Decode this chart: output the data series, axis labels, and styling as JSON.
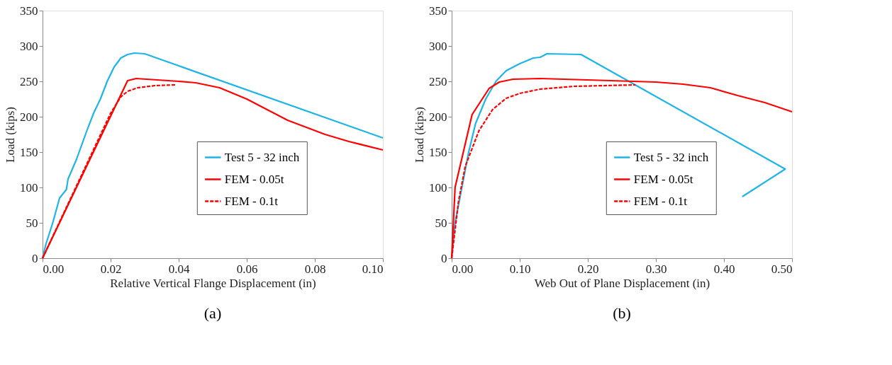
{
  "chart_data": [
    {
      "type": "line",
      "title": "(a)",
      "xlabel": "Relative Vertical Flange Displacement (in)",
      "ylabel": "Load (kips)",
      "xlim": [
        0,
        0.1
      ],
      "ylim": [
        0,
        350
      ],
      "xticks": [
        {
          "value": 0,
          "label": "0.00"
        },
        {
          "value": 0.02,
          "label": "0.02"
        },
        {
          "value": 0.04,
          "label": "0.04"
        },
        {
          "value": 0.06,
          "label": "0.06"
        },
        {
          "value": 0.08,
          "label": "0.08"
        },
        {
          "value": 0.1,
          "label": "0.10"
        }
      ],
      "yticks": [
        0,
        50,
        100,
        150,
        200,
        250,
        300,
        350
      ],
      "grid": false,
      "legend": "bottom right",
      "marker": "none",
      "series": [
        {
          "name": "Test 5 - 32 inch",
          "color": "#1fb4e8",
          "line_style": "solid",
          "x": [
            0,
            0.001,
            0.003,
            0.005,
            0.007,
            0.0075,
            0.01,
            0.013,
            0.015,
            0.017,
            0.019,
            0.021,
            0.023,
            0.025,
            0.027,
            0.03,
            0.1
          ],
          "values": [
            0,
            20,
            50,
            85,
            97,
            112,
            140,
            180,
            205,
            225,
            250,
            270,
            283,
            288,
            290,
            289,
            170
          ]
        },
        {
          "name": "FEM - 0.05t",
          "color": "#ff0000",
          "line_style": "solid",
          "x": [
            0,
            0.025,
            0.0275,
            0.04,
            0.045,
            0.052,
            0.06,
            0.072,
            0.083,
            0.09,
            0.1
          ],
          "values": [
            0,
            251,
            254,
            250,
            248,
            241,
            225,
            195,
            175,
            165,
            153
          ]
        },
        {
          "name": "FEM - 0.1t",
          "color": "#ff0000",
          "line_style": "dashed",
          "x": [
            0,
            0.02,
            0.023,
            0.025,
            0.028,
            0.033,
            0.039
          ],
          "values": [
            0,
            205,
            228,
            236,
            241,
            244,
            245
          ]
        }
      ]
    },
    {
      "type": "line",
      "title": "(b)",
      "xlabel": "Web Out of Plane Displacement (in)",
      "ylabel": "Load (kips)",
      "xlim": [
        0,
        0.5
      ],
      "ylim": [
        0,
        350
      ],
      "xticks": [
        {
          "value": 0,
          "label": "0.00"
        },
        {
          "value": 0.1,
          "label": "0.10"
        },
        {
          "value": 0.2,
          "label": "0.20"
        },
        {
          "value": 0.3,
          "label": "0.30"
        },
        {
          "value": 0.4,
          "label": "0.40"
        },
        {
          "value": 0.5,
          "label": "0.50"
        }
      ],
      "yticks": [
        0,
        50,
        100,
        150,
        200,
        250,
        300,
        350
      ],
      "grid": false,
      "legend": "bottom right",
      "marker": "none",
      "series": [
        {
          "name": "Test 5 - 32 inch",
          "color": "#1fb4e8",
          "line_style": "solid",
          "x": [
            0,
            0.005,
            0.015,
            0.025,
            0.035,
            0.05,
            0.065,
            0.08,
            0.1,
            0.12,
            0.13,
            0.14,
            0.19,
            0.49,
            0.427
          ],
          "values": [
            0,
            50,
            100,
            150,
            190,
            225,
            250,
            265,
            275,
            283,
            284,
            289,
            288,
            126,
            87
          ]
        },
        {
          "name": "FEM - 0.05t",
          "color": "#ff0000",
          "line_style": "solid",
          "x": [
            0,
            0.005,
            0.03,
            0.055,
            0.07,
            0.09,
            0.13,
            0.2,
            0.3,
            0.34,
            0.38,
            0.42,
            0.46,
            0.5
          ],
          "values": [
            0,
            100,
            203,
            240,
            249,
            253,
            254,
            252,
            249,
            246,
            241,
            230,
            220,
            207
          ]
        },
        {
          "name": "FEM - 0.1t",
          "color": "#ff0000",
          "line_style": "dashed",
          "x": [
            0,
            0.01,
            0.02,
            0.04,
            0.06,
            0.08,
            0.1,
            0.13,
            0.18,
            0.27
          ],
          "values": [
            0,
            80,
            130,
            180,
            210,
            226,
            233,
            239,
            243,
            245
          ]
        }
      ]
    }
  ]
}
